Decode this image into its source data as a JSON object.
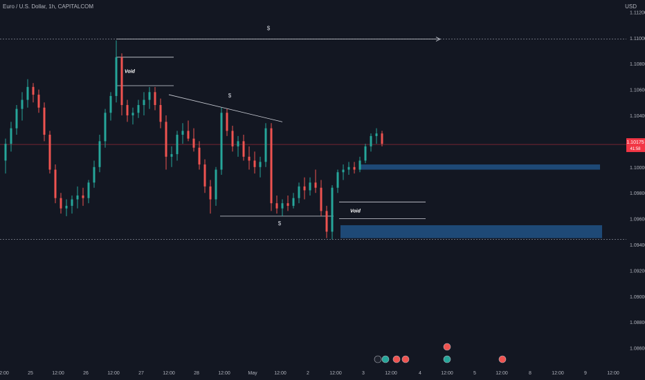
{
  "header": {
    "symbol_line": "Euro / U.S. Dollar, 1h, CAPITALCOM",
    "currency": "USD"
  },
  "colors": {
    "background": "#131722",
    "bull": "#26a69a",
    "bear": "#ef5350",
    "zone": "#1e4976",
    "axis_text": "#b2b5be",
    "line": "#d1d4dc",
    "last_price": "#f23645"
  },
  "chart_data": {
    "type": "candlestick",
    "title": "Euro / U.S. Dollar, 1h, CAPITALCOM",
    "y_axis": {
      "unit": "USD",
      "range": [
        1.0855,
        1.1125
      ],
      "ticks": [
        "1.11200",
        "1.11000",
        "1.10800",
        "1.10600",
        "1.10400",
        "1.10200",
        "1.10000",
        "1.09800",
        "1.09600",
        "1.09400",
        "1.09200",
        "1.09000",
        "1.08800",
        "1.08600"
      ]
    },
    "x_axis": {
      "ticks": [
        "2:00",
        "25",
        "12:00",
        "26",
        "12:00",
        "27",
        "12:00",
        "28",
        "12:00",
        "May",
        "12:00",
        "2",
        "12:00",
        "3",
        "12:00",
        "4",
        "12:00",
        "5",
        "12:00",
        "8",
        "12:00",
        "9",
        "12:00"
      ]
    },
    "last_price": {
      "value": 1.10175,
      "label": "1.10175",
      "countdown": "41:58"
    },
    "series": [
      {
        "t": 0,
        "o": 1.1005,
        "h": 1.1022,
        "l": 1.0995,
        "c": 1.1018
      },
      {
        "t": 2,
        "o": 1.1018,
        "h": 1.1035,
        "l": 1.1012,
        "c": 1.103
      },
      {
        "t": 4,
        "o": 1.103,
        "h": 1.1048,
        "l": 1.1025,
        "c": 1.1045
      },
      {
        "t": 6,
        "o": 1.1045,
        "h": 1.1058,
        "l": 1.1036,
        "c": 1.1052
      },
      {
        "t": 8,
        "o": 1.1052,
        "h": 1.1068,
        "l": 1.1046,
        "c": 1.1062
      },
      {
        "t": 10,
        "o": 1.1062,
        "h": 1.1065,
        "l": 1.105,
        "c": 1.1056
      },
      {
        "t": 12,
        "o": 1.1056,
        "h": 1.106,
        "l": 1.1042,
        "c": 1.1046
      },
      {
        "t": 14,
        "o": 1.1046,
        "h": 1.105,
        "l": 1.102,
        "c": 1.1025
      },
      {
        "t": 16,
        "o": 1.1025,
        "h": 1.1028,
        "l": 1.0995,
        "c": 1.0998
      },
      {
        "t": 18,
        "o": 1.0998,
        "h": 1.1002,
        "l": 1.0972,
        "c": 1.0976
      },
      {
        "t": 20,
        "o": 1.0976,
        "h": 1.098,
        "l": 1.0964,
        "c": 1.0968
      },
      {
        "t": 22,
        "o": 1.0968,
        "h": 1.0975,
        "l": 1.0962,
        "c": 1.097
      },
      {
        "t": 24,
        "o": 1.097,
        "h": 1.0978,
        "l": 1.0964,
        "c": 1.0975
      },
      {
        "t": 26,
        "o": 1.0975,
        "h": 1.0985,
        "l": 1.0968,
        "c": 1.0978
      },
      {
        "t": 28,
        "o": 1.0978,
        "h": 1.0984,
        "l": 1.097,
        "c": 1.0976
      },
      {
        "t": 30,
        "o": 1.0976,
        "h": 1.099,
        "l": 1.0972,
        "c": 1.0988
      },
      {
        "t": 32,
        "o": 1.0988,
        "h": 1.1005,
        "l": 1.0984,
        "c": 1.1
      },
      {
        "t": 34,
        "o": 1.1,
        "h": 1.1025,
        "l": 1.0996,
        "c": 1.102
      },
      {
        "t": 36,
        "o": 1.102,
        "h": 1.1045,
        "l": 1.1015,
        "c": 1.1042
      },
      {
        "t": 38,
        "o": 1.1042,
        "h": 1.1058,
        "l": 1.1036,
        "c": 1.1055
      },
      {
        "t": 40,
        "o": 1.1055,
        "h": 1.1098,
        "l": 1.105,
        "c": 1.1085
      },
      {
        "t": 42,
        "o": 1.1085,
        "h": 1.1088,
        "l": 1.104,
        "c": 1.1048
      },
      {
        "t": 44,
        "o": 1.1048,
        "h": 1.1052,
        "l": 1.1035,
        "c": 1.104
      },
      {
        "t": 46,
        "o": 1.104,
        "h": 1.1046,
        "l": 1.1033,
        "c": 1.1042
      },
      {
        "t": 48,
        "o": 1.1042,
        "h": 1.1052,
        "l": 1.1038,
        "c": 1.1048
      },
      {
        "t": 50,
        "o": 1.1048,
        "h": 1.1058,
        "l": 1.104,
        "c": 1.1052
      },
      {
        "t": 52,
        "o": 1.1052,
        "h": 1.1062,
        "l": 1.1045,
        "c": 1.1058
      },
      {
        "t": 54,
        "o": 1.1058,
        "h": 1.1062,
        "l": 1.1044,
        "c": 1.1048
      },
      {
        "t": 56,
        "o": 1.1048,
        "h": 1.1053,
        "l": 1.103,
        "c": 1.1035
      },
      {
        "t": 58,
        "o": 1.1035,
        "h": 1.104,
        "l": 1.0998,
        "c": 1.1008
      },
      {
        "t": 60,
        "o": 1.1008,
        "h": 1.1016,
        "l": 1.1,
        "c": 1.101
      },
      {
        "t": 62,
        "o": 1.101,
        "h": 1.1028,
        "l": 1.1005,
        "c": 1.1025
      },
      {
        "t": 64,
        "o": 1.1025,
        "h": 1.1034,
        "l": 1.1018,
        "c": 1.1028
      },
      {
        "t": 66,
        "o": 1.1028,
        "h": 1.1036,
        "l": 1.102,
        "c": 1.1022
      },
      {
        "t": 68,
        "o": 1.1022,
        "h": 1.103,
        "l": 1.1012,
        "c": 1.1015
      },
      {
        "t": 70,
        "o": 1.1015,
        "h": 1.102,
        "l": 1.0998,
        "c": 1.1002
      },
      {
        "t": 72,
        "o": 1.1002,
        "h": 1.1006,
        "l": 1.098,
        "c": 1.0985
      },
      {
        "t": 74,
        "o": 1.0985,
        "h": 1.099,
        "l": 1.0964,
        "c": 1.0975
      },
      {
        "t": 76,
        "o": 1.0975,
        "h": 1.1,
        "l": 1.097,
        "c": 1.0998
      },
      {
        "t": 78,
        "o": 1.0998,
        "h": 1.1046,
        "l": 1.0994,
        "c": 1.1042
      },
      {
        "t": 80,
        "o": 1.1042,
        "h": 1.1045,
        "l": 1.1024,
        "c": 1.1028
      },
      {
        "t": 82,
        "o": 1.1028,
        "h": 1.1032,
        "l": 1.1012,
        "c": 1.1016
      },
      {
        "t": 84,
        "o": 1.1016,
        "h": 1.1024,
        "l": 1.1008,
        "c": 1.102
      },
      {
        "t": 86,
        "o": 1.102,
        "h": 1.1025,
        "l": 1.1005,
        "c": 1.1008
      },
      {
        "t": 88,
        "o": 1.1008,
        "h": 1.1016,
        "l": 1.0998,
        "c": 1.1005
      },
      {
        "t": 90,
        "o": 1.1005,
        "h": 1.1012,
        "l": 1.0995,
        "c": 1.1
      },
      {
        "t": 92,
        "o": 1.1,
        "h": 1.1008,
        "l": 1.0992,
        "c": 1.1004
      },
      {
        "t": 94,
        "o": 1.1004,
        "h": 1.1034,
        "l": 1.1,
        "c": 1.103
      },
      {
        "t": 96,
        "o": 1.103,
        "h": 1.1034,
        "l": 1.0966,
        "c": 1.0972
      },
      {
        "t": 98,
        "o": 1.0972,
        "h": 1.0978,
        "l": 1.0964,
        "c": 1.0968
      },
      {
        "t": 100,
        "o": 1.0968,
        "h": 1.0975,
        "l": 1.0962,
        "c": 1.0972
      },
      {
        "t": 102,
        "o": 1.0972,
        "h": 1.0978,
        "l": 1.0966,
        "c": 1.097
      },
      {
        "t": 104,
        "o": 1.097,
        "h": 1.098,
        "l": 1.0968,
        "c": 1.0976
      },
      {
        "t": 106,
        "o": 1.0976,
        "h": 1.0988,
        "l": 1.0972,
        "c": 1.0985
      },
      {
        "t": 108,
        "o": 1.0985,
        "h": 1.0992,
        "l": 1.0975,
        "c": 1.0982
      },
      {
        "t": 110,
        "o": 1.0982,
        "h": 1.0992,
        "l": 1.0978,
        "c": 1.0988
      },
      {
        "t": 112,
        "o": 1.0988,
        "h": 1.0998,
        "l": 1.098,
        "c": 1.0984
      },
      {
        "t": 114,
        "o": 1.0984,
        "h": 1.099,
        "l": 1.0962,
        "c": 1.0966
      },
      {
        "t": 116,
        "o": 1.0966,
        "h": 1.097,
        "l": 1.0945,
        "c": 1.095
      },
      {
        "t": 118,
        "o": 1.095,
        "h": 1.0986,
        "l": 1.0944,
        "c": 1.0984
      },
      {
        "t": 120,
        "o": 1.0984,
        "h": 1.0998,
        "l": 1.098,
        "c": 1.0996
      },
      {
        "t": 122,
        "o": 1.0996,
        "h": 1.1002,
        "l": 1.099,
        "c": 1.0998
      },
      {
        "t": 124,
        "o": 1.0998,
        "h": 1.1004,
        "l": 1.0994,
        "c": 1.1
      },
      {
        "t": 126,
        "o": 1.1,
        "h": 1.1004,
        "l": 1.0995,
        "c": 1.0998
      },
      {
        "t": 128,
        "o": 1.0998,
        "h": 1.1008,
        "l": 1.0996,
        "c": 1.1005
      },
      {
        "t": 130,
        "o": 1.1005,
        "h": 1.1018,
        "l": 1.1003,
        "c": 1.1016
      },
      {
        "t": 132,
        "o": 1.1016,
        "h": 1.1026,
        "l": 1.1012,
        "c": 1.1024
      },
      {
        "t": 134,
        "o": 1.1024,
        "h": 1.103,
        "l": 1.1018,
        "c": 1.1026
      },
      {
        "t": 136,
        "o": 1.1026,
        "h": 1.1028,
        "l": 1.1016,
        "c": 1.1018
      }
    ],
    "drawings": {
      "liquidity_labels": [
        "$",
        "$",
        "$"
      ],
      "void_labels": [
        "Void",
        "Void"
      ]
    }
  }
}
